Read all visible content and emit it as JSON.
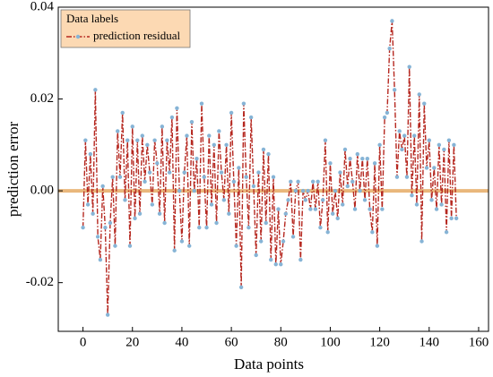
{
  "chart_data": {
    "type": "line",
    "xlabel": "Data points",
    "ylabel": "prediction error",
    "legend_title": "Data labels",
    "legend": "upper left",
    "x": [
      0,
      1,
      2,
      3,
      4,
      5,
      6,
      7,
      8,
      9,
      10,
      11,
      12,
      13,
      14,
      15,
      16,
      17,
      18,
      19,
      20,
      21,
      22,
      23,
      24,
      25,
      26,
      27,
      28,
      29,
      30,
      31,
      32,
      33,
      34,
      35,
      36,
      37,
      38,
      39,
      40,
      41,
      42,
      43,
      44,
      45,
      46,
      47,
      48,
      49,
      50,
      51,
      52,
      53,
      54,
      55,
      56,
      57,
      58,
      59,
      60,
      61,
      62,
      63,
      64,
      65,
      66,
      67,
      68,
      69,
      70,
      71,
      72,
      73,
      74,
      75,
      76,
      77,
      78,
      79,
      80,
      81,
      82,
      83,
      84,
      85,
      86,
      87,
      88,
      89,
      90,
      91,
      92,
      93,
      94,
      95,
      96,
      97,
      98,
      99,
      100,
      101,
      102,
      103,
      104,
      105,
      106,
      107,
      108,
      109,
      110,
      111,
      112,
      113,
      114,
      115,
      116,
      117,
      118,
      119,
      120,
      121,
      122,
      123,
      124,
      125,
      126,
      127,
      128,
      129,
      130,
      131,
      132,
      133,
      134,
      135,
      136,
      137,
      138,
      139,
      140,
      141,
      142,
      143,
      144,
      145,
      146,
      147,
      148,
      149,
      150,
      151
    ],
    "series": [
      {
        "name": "prediction residual",
        "color": "#b5271f",
        "marker_color": "#86b4d6",
        "values": [
          -0.008,
          0.011,
          -0.003,
          0.008,
          -0.005,
          0.022,
          -0.01,
          -0.015,
          0.001,
          -0.008,
          -0.027,
          -0.007,
          0.003,
          -0.012,
          0.013,
          0.003,
          0.017,
          -0.002,
          0.011,
          -0.012,
          0.014,
          -0.006,
          0.011,
          -0.005,
          0.012,
          0.002,
          0.01,
          0.004,
          -0.003,
          0.011,
          0.006,
          -0.005,
          0.014,
          -0.007,
          0.011,
          0.004,
          0.016,
          -0.013,
          0.018,
          0.0,
          -0.011,
          0.004,
          0.012,
          -0.012,
          0.015,
          0.0,
          0.007,
          -0.008,
          0.019,
          0.003,
          -0.008,
          0.012,
          -0.003,
          0.01,
          -0.007,
          0.013,
          0.004,
          -0.002,
          0.01,
          -0.005,
          0.017,
          0.002,
          -0.012,
          0.005,
          -0.021,
          0.019,
          0.003,
          -0.008,
          0.016,
          0.001,
          -0.014,
          0.004,
          -0.011,
          0.009,
          -0.007,
          0.008,
          -0.015,
          0.003,
          -0.016,
          -0.004,
          -0.016,
          -0.011,
          -0.005,
          -0.002,
          0.002,
          -0.01,
          0.0,
          0.002,
          -0.015,
          0.0,
          -0.002,
          0.0,
          -0.004,
          0.002,
          -0.004,
          0.002,
          -0.008,
          -0.002,
          0.011,
          -0.009,
          0.006,
          -0.005,
          0.0,
          -0.006,
          0.004,
          -0.003,
          0.009,
          0.001,
          0.007,
          0.002,
          -0.004,
          0.008,
          0.0,
          0.007,
          -0.002,
          0.007,
          -0.004,
          -0.009,
          0.006,
          -0.012,
          0.01,
          -0.004,
          0.016,
          0.017,
          0.031,
          0.037,
          0.022,
          0.003,
          0.013,
          0.009,
          0.012,
          0.003,
          0.027,
          -0.001,
          0.012,
          -0.003,
          0.021,
          -0.011,
          0.019,
          0.005,
          0.011,
          -0.002,
          0.005,
          -0.004,
          0.01,
          -0.003,
          0.009,
          -0.009,
          0.011,
          -0.006,
          0.01,
          -0.006
        ]
      }
    ],
    "reference_line": {
      "value": 0,
      "color": "#e9b77c"
    },
    "xlim": [
      -10,
      164
    ],
    "xticks": [
      0,
      20,
      40,
      60,
      80,
      100,
      120,
      140,
      160
    ],
    "ylim": [
      -0.0306,
      0.04
    ],
    "yticks": [
      -0.02,
      {
        "value": 0,
        "label": "0.00"
      },
      0.02,
      0.04
    ],
    "legend_color": "#fcd9b3"
  }
}
